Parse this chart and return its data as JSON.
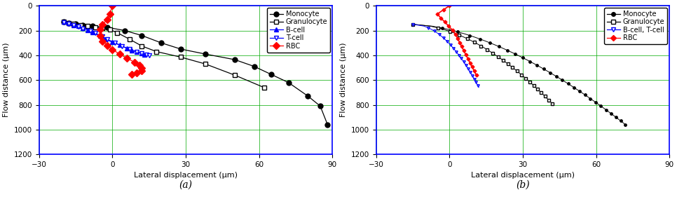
{
  "panel_a": {
    "title": "(a)",
    "xlabel": "Lateral displacement (μm)",
    "ylabel": "Flow distance (μm)",
    "xlim": [
      -30,
      90
    ],
    "ylim": [
      1200,
      0
    ],
    "xticks": [
      -30,
      0,
      30,
      60,
      90
    ],
    "yticks": [
      0,
      200,
      400,
      600,
      800,
      1000,
      1200
    ],
    "monocyte_x": [
      -20,
      -18,
      -15,
      -12,
      -8,
      -2,
      5,
      12,
      20,
      28,
      38,
      50,
      58,
      65,
      72,
      80,
      85,
      88
    ],
    "monocyte_y": [
      130,
      140,
      148,
      155,
      165,
      175,
      200,
      240,
      300,
      350,
      390,
      435,
      490,
      555,
      620,
      730,
      810,
      960
    ],
    "gran_x": [
      -20,
      -18,
      -16,
      -13,
      -10,
      -7,
      -4,
      -1,
      2,
      7,
      12,
      18,
      28,
      38,
      50,
      62
    ],
    "gran_y": [
      130,
      140,
      148,
      158,
      165,
      173,
      180,
      193,
      218,
      270,
      325,
      370,
      415,
      470,
      560,
      660
    ],
    "bcell_x": [
      -20,
      -18,
      -16,
      -14,
      -12,
      -10,
      -8,
      -5,
      -3,
      0,
      3,
      6,
      8,
      10,
      12,
      13
    ],
    "bcell_y": [
      130,
      142,
      155,
      165,
      178,
      195,
      215,
      245,
      268,
      295,
      318,
      345,
      360,
      375,
      385,
      393
    ],
    "tcell_x": [
      -20,
      -18,
      -16,
      -14,
      -12,
      -9,
      -7,
      -4,
      -2,
      1,
      4,
      7,
      10,
      12,
      14,
      15
    ],
    "tcell_y": [
      135,
      148,
      160,
      170,
      183,
      200,
      222,
      250,
      272,
      298,
      325,
      352,
      372,
      385,
      395,
      402
    ],
    "rbc_x": [
      0,
      -1,
      -2,
      -4,
      -5,
      -5,
      -4,
      -2,
      0,
      3,
      6,
      9,
      11,
      12,
      12,
      10,
      8
    ],
    "rbc_y": [
      0,
      65,
      110,
      150,
      190,
      240,
      285,
      320,
      355,
      390,
      425,
      455,
      480,
      505,
      525,
      540,
      555
    ]
  },
  "panel_b": {
    "title": "(b)",
    "xlabel": "Lateral displacement (μm)",
    "ylabel": "Flow distance (μm)",
    "xlim": [
      -30,
      90
    ],
    "ylim": [
      1200,
      0
    ],
    "xticks": [
      -30,
      0,
      30,
      60,
      90
    ],
    "yticks": [
      0,
      200,
      400,
      600,
      800,
      1000,
      1200
    ]
  }
}
